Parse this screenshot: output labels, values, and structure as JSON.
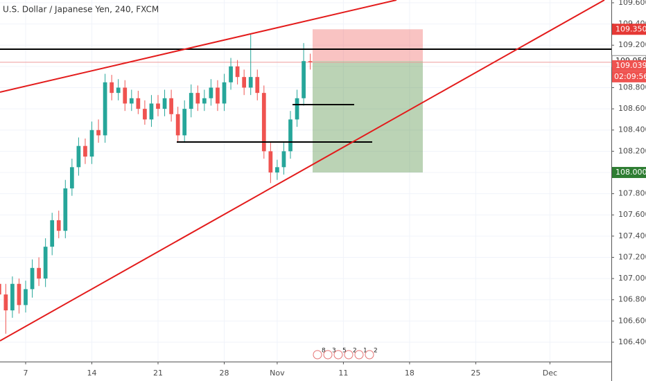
{
  "chart_data": {
    "type": "candlestick",
    "title": "U.S. Dollar / Japanese Yen, 240, FXCM",
    "x": [
      -2,
      -1.5,
      -1,
      -0.5,
      0,
      0.5,
      1,
      1.5,
      2,
      2.5,
      3,
      3.5,
      4,
      4.5,
      5,
      5.5,
      6,
      6.5,
      7,
      7.5,
      8,
      8.5,
      9,
      9.5,
      10,
      10.5,
      11,
      11.5,
      12,
      12.5,
      13,
      13.5,
      14,
      14.5,
      15,
      15.5,
      16,
      16.5,
      17,
      17.5,
      18,
      18.5,
      19,
      19.5,
      20,
      20.5,
      21,
      21.5
    ],
    "open": [
      106.95,
      106.85,
      106.7,
      106.95,
      106.75,
      106.9,
      107.1,
      107.0,
      107.3,
      107.55,
      107.45,
      107.85,
      108.05,
      108.25,
      108.15,
      108.4,
      108.35,
      108.85,
      108.75,
      108.8,
      108.65,
      108.7,
      108.6,
      108.5,
      108.65,
      108.6,
      108.7,
      108.55,
      108.35,
      108.6,
      108.75,
      108.65,
      108.7,
      108.8,
      108.65,
      108.85,
      109.0,
      108.9,
      108.8,
      108.9,
      108.75,
      108.2,
      108.0,
      108.05,
      108.2,
      108.5,
      108.7,
      109.05
    ],
    "high": [
      107.05,
      106.95,
      107.02,
      107.0,
      106.98,
      107.18,
      107.2,
      107.38,
      107.62,
      107.64,
      107.93,
      108.13,
      108.33,
      108.32,
      108.48,
      108.5,
      108.93,
      108.92,
      108.88,
      108.87,
      108.78,
      108.77,
      108.68,
      108.73,
      108.73,
      108.78,
      108.78,
      108.62,
      108.68,
      108.83,
      108.82,
      108.78,
      108.88,
      108.87,
      108.93,
      109.08,
      109.06,
      108.97,
      109.3,
      108.97,
      108.82,
      108.28,
      108.12,
      108.28,
      108.58,
      108.78,
      109.22,
      109.12
    ],
    "low": [
      106.78,
      106.48,
      106.63,
      106.67,
      106.68,
      106.82,
      106.93,
      106.92,
      107.22,
      107.38,
      107.38,
      107.78,
      107.97,
      108.08,
      108.08,
      108.28,
      108.28,
      108.68,
      108.68,
      108.58,
      108.58,
      108.55,
      108.45,
      108.43,
      108.53,
      108.53,
      108.48,
      108.28,
      108.28,
      108.52,
      108.58,
      108.58,
      108.63,
      108.58,
      108.58,
      108.78,
      108.83,
      108.73,
      108.73,
      108.68,
      108.13,
      107.9,
      107.93,
      107.98,
      108.13,
      108.43,
      108.63,
      108.97
    ],
    "close": [
      106.85,
      106.7,
      106.95,
      106.75,
      106.9,
      107.1,
      107.0,
      107.3,
      107.55,
      107.45,
      107.85,
      108.05,
      108.25,
      108.15,
      108.4,
      108.35,
      108.85,
      108.75,
      108.8,
      108.65,
      108.7,
      108.6,
      108.5,
      108.65,
      108.6,
      108.7,
      108.55,
      108.35,
      108.6,
      108.75,
      108.65,
      108.7,
      108.8,
      108.65,
      108.85,
      109.0,
      108.9,
      108.8,
      108.9,
      108.75,
      108.2,
      108.0,
      108.05,
      108.2,
      108.5,
      108.7,
      109.05,
      109.04
    ],
    "up_color": "#26a69a",
    "down_color": "#ef5350",
    "xlim": [
      -1.937,
      44.24
    ],
    "xticks": [
      {
        "value": 0,
        "label": "7"
      },
      {
        "value": 5,
        "label": "14"
      },
      {
        "value": 10,
        "label": "21"
      },
      {
        "value": 15,
        "label": "28"
      },
      {
        "value": 19,
        "label": "Nov"
      },
      {
        "value": 24,
        "label": "11"
      },
      {
        "value": 29,
        "label": "18"
      },
      {
        "value": 34,
        "label": "25"
      },
      {
        "value": 39.6,
        "label": "Dec"
      }
    ],
    "ylim": [
      106.217,
      109.626
    ],
    "yticks": [
      {
        "value": 106.4,
        "label": "106.400"
      },
      {
        "value": 106.6,
        "label": "106.600"
      },
      {
        "value": 106.8,
        "label": "106.800"
      },
      {
        "value": 107.0,
        "label": "107.000"
      },
      {
        "value": 107.2,
        "label": "107.200"
      },
      {
        "value": 107.4,
        "label": "107.400"
      },
      {
        "value": 107.6,
        "label": "107.600"
      },
      {
        "value": 107.8,
        "label": "107.800"
      },
      {
        "value": 108.0,
        "label": "108.000"
      },
      {
        "value": 108.2,
        "label": "108.200"
      },
      {
        "value": 108.4,
        "label": "108.400"
      },
      {
        "value": 108.6,
        "label": "108.600"
      },
      {
        "value": 108.8,
        "label": "108.800"
      },
      {
        "value": 109.0,
        "label": "109.000"
      },
      {
        "value": 109.2,
        "label": "109.200"
      },
      {
        "value": 109.4,
        "label": "109.400"
      },
      {
        "value": 109.6,
        "label": "109.600"
      }
    ],
    "price_labels": [
      {
        "value": 109.35,
        "label": "109.350",
        "color": "#e53935"
      },
      {
        "value": 109.05,
        "label": "109.050",
        "color": "#ffffff"
      },
      {
        "value": 109.039,
        "label": "109.039",
        "color": "#ef5350"
      },
      {
        "value": 108.0,
        "label": "108.000",
        "color": "#2e7d32"
      }
    ],
    "countdown": "02:09:56",
    "events": [
      "8",
      "3",
      "5",
      "2",
      "1",
      "2"
    ]
  }
}
